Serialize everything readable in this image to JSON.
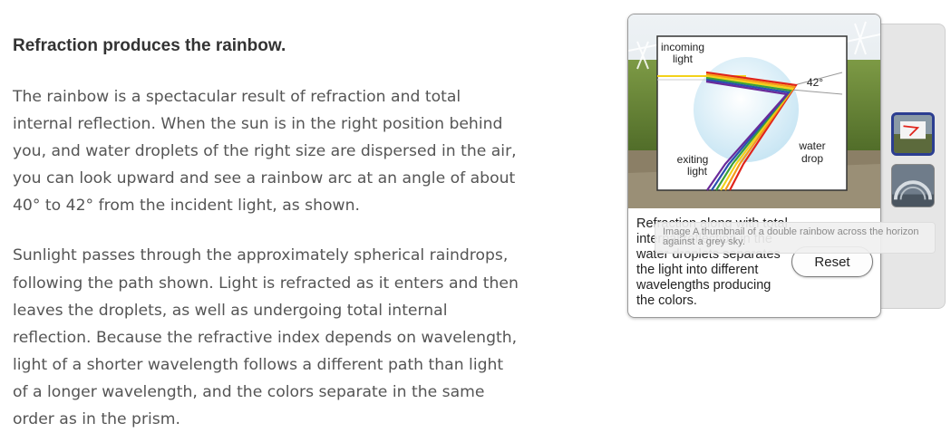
{
  "article": {
    "heading": "Refraction produces the rainbow.",
    "paragraphs": [
      "The rainbow is a spectacular result of refraction and total internal reflection. When the sun is in the right position behind you, and water droplets of the right size are dispersed in the air, you can look upward and see a rainbow arc at an angle of about 40° to 42° from the incident light, as shown.",
      "Sunlight passes through the approximately spherical raindrops, following the path shown. Light is refracted as it enters and then leaves the droplets, as well as undergoing total internal reflection. Because the refractive index depends on wavelength, light of a shorter wavelength follows a different path than light of a longer wavelength, and the colors separate in the same order as in the prism."
    ]
  },
  "figure": {
    "labels": {
      "incoming_line1": "incoming",
      "incoming_line2": "light",
      "angle": "42°",
      "water_line1": "water",
      "water_line2": "drop",
      "exiting_line1": "exiting",
      "exiting_line2": "light"
    },
    "caption": "Refraction along with total internal reflection in the water droplets separates the light into different wavelengths producing the colors."
  },
  "controls": {
    "reset_label": "Reset"
  },
  "tooltip": {
    "text": "Image A thumbnail of a double rainbow across the horizon against a grey sky."
  },
  "colors": {
    "sky": "#dfe7ec",
    "crop_green": "#6f8f3a",
    "ray_red": "#e0241b",
    "ray_yellow": "#f3d21a",
    "ray_blue": "#2a4fb0"
  }
}
